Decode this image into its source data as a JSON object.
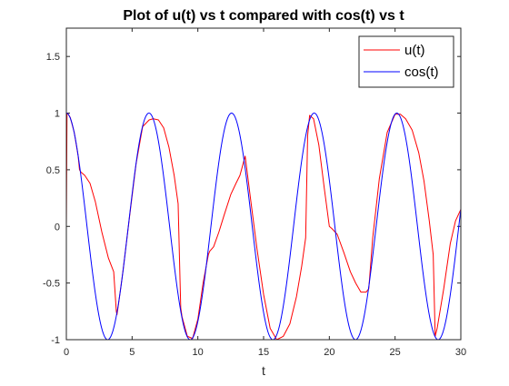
{
  "chart_data": {
    "type": "line",
    "title": "Plot of u(t) vs t compared with cos(t) vs t",
    "xlabel": "t",
    "ylabel": "",
    "xlim": [
      0,
      30
    ],
    "ylim": [
      -1,
      1.75
    ],
    "xticks": [
      0,
      5,
      10,
      15,
      20,
      25,
      30
    ],
    "xtick_labels": [
      "0",
      "5",
      "10",
      "15",
      "20",
      "25",
      "30"
    ],
    "yticks": [
      -1,
      -0.5,
      0,
      0.5,
      1,
      1.5
    ],
    "ytick_labels": [
      "-1",
      "-0.5",
      "0",
      "0.5",
      "1",
      "1.5"
    ],
    "grid": false,
    "legend_position": "top-right",
    "series": [
      {
        "name": "u(t)",
        "color": "#ff0000",
        "x": [
          0.0,
          0.05,
          0.15,
          0.3,
          0.6,
          0.9,
          1.0,
          1.1,
          1.4,
          1.8,
          2.2,
          2.7,
          3.2,
          3.6,
          3.8,
          3.85,
          3.95,
          4.3,
          4.8,
          5.3,
          5.8,
          6.3,
          6.6,
          7.0,
          7.4,
          7.8,
          8.2,
          8.5,
          8.65,
          8.7,
          8.8,
          9.2,
          9.6,
          10.0,
          10.4,
          10.8,
          10.9,
          11.2,
          11.6,
          12.0,
          12.5,
          12.9,
          13.2,
          13.6,
          14.0,
          14.5,
          15.0,
          15.5,
          16.0,
          16.5,
          17.0,
          17.5,
          17.9,
          18.2,
          18.3,
          18.35,
          18.5,
          18.8,
          19.2,
          19.6,
          20.0,
          20.2,
          20.6,
          21.1,
          21.6,
          22.0,
          22.4,
          22.8,
          23.0,
          23.3,
          23.8,
          24.4,
          25.0,
          25.4,
          25.8,
          26.3,
          26.8,
          27.2,
          27.6,
          27.9,
          28.05,
          28.2,
          28.7,
          29.2,
          29.6,
          30.0
        ],
        "y": [
          0.0,
          1.0,
          0.99,
          0.96,
          0.83,
          0.62,
          0.5,
          0.48,
          0.45,
          0.38,
          0.22,
          -0.05,
          -0.28,
          -0.4,
          -0.75,
          -0.78,
          -0.7,
          -0.4,
          0.08,
          0.55,
          0.88,
          0.94,
          0.95,
          0.94,
          0.87,
          0.7,
          0.45,
          0.2,
          -0.5,
          -0.72,
          -0.8,
          -0.97,
          -0.99,
          -0.82,
          -0.5,
          -0.25,
          -0.22,
          -0.18,
          -0.05,
          0.1,
          0.28,
          0.38,
          0.45,
          0.62,
          0.25,
          -0.2,
          -0.6,
          -0.9,
          -1.0,
          -0.97,
          -0.86,
          -0.62,
          -0.35,
          -0.1,
          0.5,
          0.8,
          0.98,
          0.95,
          0.72,
          0.35,
          0.0,
          -0.02,
          -0.07,
          -0.23,
          -0.4,
          -0.5,
          -0.58,
          -0.58,
          -0.55,
          -0.1,
          0.42,
          0.83,
          0.99,
          0.99,
          0.95,
          0.85,
          0.65,
          0.4,
          0.05,
          -0.25,
          -0.97,
          -0.9,
          -0.55,
          -0.15,
          0.05,
          0.15
        ]
      },
      {
        "name": "cos(t)",
        "color": "#0000ff",
        "function": "cos",
        "x_range": [
          0,
          30
        ]
      }
    ]
  }
}
